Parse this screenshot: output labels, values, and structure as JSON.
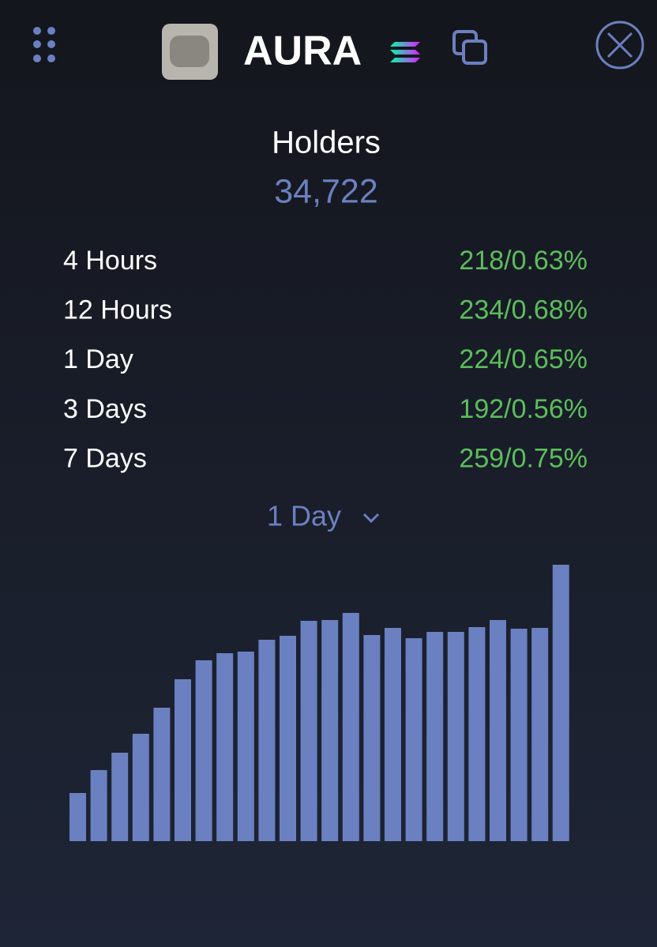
{
  "header": {
    "title": "AURA"
  },
  "stats": {
    "title": "Holders",
    "value": "34,722",
    "rows": [
      {
        "label": "4 Hours",
        "value": "218/0.63%"
      },
      {
        "label": "12 Hours",
        "value": "234/0.68%"
      },
      {
        "label": "1 Day",
        "value": "224/0.65%"
      },
      {
        "label": "3 Days",
        "value": "192/0.56%"
      },
      {
        "label": "7 Days",
        "value": "259/0.75%"
      }
    ]
  },
  "selector": {
    "label": "1 Day"
  },
  "chart_data": {
    "type": "bar",
    "color": "#6b80c0",
    "values": [
      61,
      90,
      112,
      136,
      169,
      205,
      229,
      238,
      240,
      255,
      260,
      279,
      280,
      289,
      261,
      270,
      257,
      265,
      265,
      271,
      280,
      269,
      270,
      350
    ]
  }
}
